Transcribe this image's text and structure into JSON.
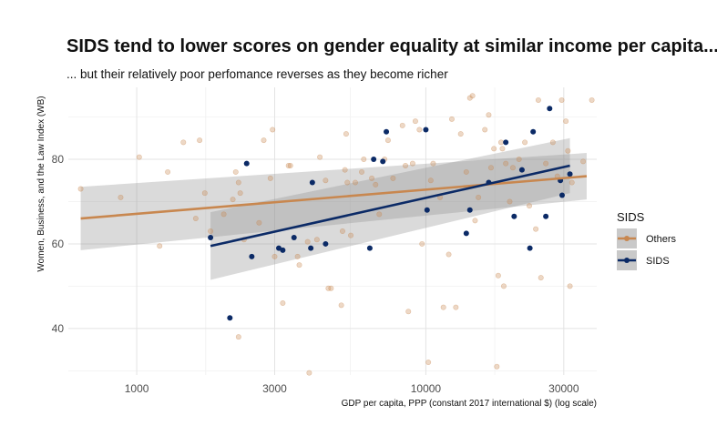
{
  "chart_data": {
    "type": "scatter",
    "title": "SIDS tend to lower scores on gender equality at similar income per capita...",
    "subtitle": "... but their relatively poor perfomance reverses as they become richer",
    "xlabel": "GDP per capita, PPP (constant 2017 international $) (log scale)",
    "ylabel": "Women, Business, and the Law Index (WB)",
    "x_scale": "log",
    "xlim": [
      580,
      39000
    ],
    "ylim": [
      29,
      97
    ],
    "x_ticks": [
      1000,
      3000,
      10000,
      30000
    ],
    "x_tick_labels": [
      "1000",
      "3000",
      "10000",
      "30000"
    ],
    "y_ticks": [
      40,
      60,
      80
    ],
    "y_tick_labels": [
      "40",
      "60",
      "80"
    ],
    "grid": true,
    "legend": {
      "title": "SIDS",
      "position": "right",
      "entries": [
        {
          "label": "Others",
          "color": "#c8874f"
        },
        {
          "label": "SIDS",
          "color": "#0b2a66"
        }
      ]
    },
    "series": [
      {
        "name": "Others",
        "color": "#c8874f",
        "points": [
          [
            640,
            73
          ],
          [
            880,
            71
          ],
          [
            1020,
            80.5
          ],
          [
            1200,
            59.5
          ],
          [
            1280,
            77
          ],
          [
            1450,
            84
          ],
          [
            1600,
            66
          ],
          [
            1650,
            84.5
          ],
          [
            1720,
            72
          ],
          [
            1800,
            63
          ],
          [
            2000,
            67
          ],
          [
            2150,
            70.5
          ],
          [
            2200,
            77
          ],
          [
            2250,
            74.5
          ],
          [
            2280,
            72
          ],
          [
            2250,
            38
          ],
          [
            2350,
            61
          ],
          [
            2650,
            65
          ],
          [
            2750,
            84.5
          ],
          [
            2900,
            75.5
          ],
          [
            2950,
            87
          ],
          [
            3000,
            57
          ],
          [
            3200,
            46
          ],
          [
            3350,
            78.5
          ],
          [
            3400,
            78.5
          ],
          [
            3600,
            57
          ],
          [
            3650,
            55
          ],
          [
            3900,
            60.5
          ],
          [
            3950,
            29.5
          ],
          [
            4200,
            61
          ],
          [
            4300,
            80.5
          ],
          [
            4500,
            75
          ],
          [
            4600,
            49.5
          ],
          [
            4700,
            49.5
          ],
          [
            5100,
            45.5
          ],
          [
            5150,
            63
          ],
          [
            5250,
            77.5
          ],
          [
            5300,
            86
          ],
          [
            5350,
            74.5
          ],
          [
            5500,
            62
          ],
          [
            5700,
            74.5
          ],
          [
            6000,
            77
          ],
          [
            6100,
            80
          ],
          [
            6500,
            75.5
          ],
          [
            6700,
            74
          ],
          [
            6900,
            67
          ],
          [
            7200,
            80
          ],
          [
            7400,
            84.5
          ],
          [
            7700,
            75.5
          ],
          [
            8300,
            88
          ],
          [
            8500,
            78.5
          ],
          [
            8700,
            44
          ],
          [
            9000,
            79
          ],
          [
            9200,
            89
          ],
          [
            9500,
            87
          ],
          [
            9700,
            60
          ],
          [
            10200,
            32
          ],
          [
            10400,
            75
          ],
          [
            10600,
            79
          ],
          [
            11200,
            71
          ],
          [
            11500,
            45
          ],
          [
            12000,
            57.5
          ],
          [
            12300,
            89.5
          ],
          [
            12700,
            45
          ],
          [
            13200,
            86
          ],
          [
            13800,
            77
          ],
          [
            14200,
            94.5
          ],
          [
            14500,
            95
          ],
          [
            14800,
            65.5
          ],
          [
            15200,
            71
          ],
          [
            16000,
            87
          ],
          [
            16500,
            90.5
          ],
          [
            16800,
            78
          ],
          [
            17200,
            82.5
          ],
          [
            17600,
            31
          ],
          [
            17800,
            52.5
          ],
          [
            18200,
            84
          ],
          [
            18400,
            82.5
          ],
          [
            18600,
            50
          ],
          [
            18900,
            79
          ],
          [
            19500,
            70
          ],
          [
            20000,
            78
          ],
          [
            21000,
            80
          ],
          [
            22000,
            84
          ],
          [
            22800,
            69
          ],
          [
            24000,
            63.5
          ],
          [
            24500,
            94
          ],
          [
            25000,
            52
          ],
          [
            26000,
            79
          ],
          [
            27500,
            84
          ],
          [
            28500,
            76
          ],
          [
            29500,
            94
          ],
          [
            30500,
            89
          ],
          [
            31000,
            82
          ],
          [
            31500,
            50
          ],
          [
            32000,
            74.5
          ],
          [
            35000,
            79.5
          ],
          [
            37500,
            94
          ]
        ],
        "fit": {
          "x": [
            640,
            36000
          ],
          "y": [
            66,
            76
          ],
          "ci_lower": [
            58.5,
            70.5
          ],
          "ci_upper": [
            73.5,
            81.5
          ]
        }
      },
      {
        "name": "SIDS",
        "color": "#0b2a66",
        "points": [
          [
            1800,
            61.5
          ],
          [
            2100,
            42.5
          ],
          [
            2400,
            79
          ],
          [
            2500,
            57
          ],
          [
            3100,
            59
          ],
          [
            3200,
            58.5
          ],
          [
            3500,
            61.5
          ],
          [
            4000,
            59
          ],
          [
            4050,
            74.5
          ],
          [
            4500,
            60
          ],
          [
            6400,
            59
          ],
          [
            6600,
            80
          ],
          [
            7100,
            79.5
          ],
          [
            7300,
            86.5
          ],
          [
            10000,
            87
          ],
          [
            10100,
            68
          ],
          [
            13800,
            62.5
          ],
          [
            14200,
            68
          ],
          [
            16500,
            74.5
          ],
          [
            18900,
            84
          ],
          [
            20200,
            66.5
          ],
          [
            21500,
            77.5
          ],
          [
            22900,
            59
          ],
          [
            23500,
            86.5
          ],
          [
            26000,
            66.5
          ],
          [
            26800,
            92
          ],
          [
            29200,
            75
          ],
          [
            29600,
            71.5
          ],
          [
            31500,
            76.5
          ]
        ],
        "fit": {
          "x": [
            1800,
            31500
          ],
          "y": [
            59.5,
            78.5
          ],
          "ci_lower": [
            51.5,
            72
          ],
          "ci_upper": [
            67.5,
            85
          ]
        }
      }
    ]
  }
}
